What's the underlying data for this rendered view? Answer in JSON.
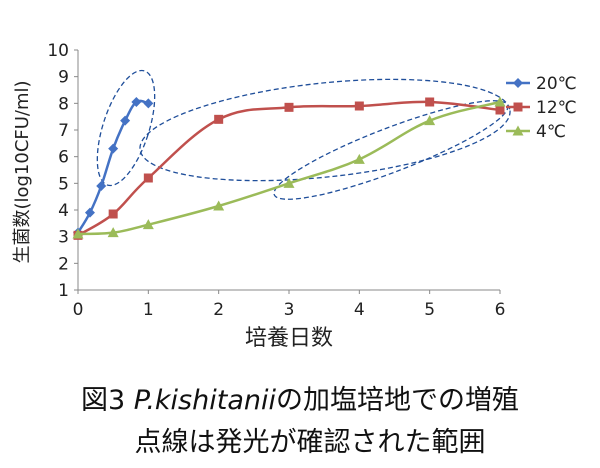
{
  "chart_data": {
    "type": "line",
    "ylabel": "生菌数(log10CFU/ml)",
    "xlabel": "培養日数",
    "xlim": [
      0,
      6
    ],
    "ylim": [
      1,
      10
    ],
    "x_ticks": [
      "0",
      "1",
      "2",
      "3",
      "4",
      "5",
      "6"
    ],
    "y_ticks": [
      "1",
      "2",
      "3",
      "4",
      "5",
      "6",
      "7",
      "8",
      "9",
      "10"
    ],
    "grid": false,
    "legend_position": "right",
    "series": [
      {
        "name": "20℃",
        "color": "#4472C4",
        "marker": "diamond",
        "x": [
          0,
          0.17,
          0.33,
          0.5,
          0.67,
          0.83,
          1.0
        ],
        "y": [
          3.15,
          3.9,
          4.9,
          6.3,
          7.35,
          8.05,
          8.0
        ]
      },
      {
        "name": "12℃",
        "color": "#C0504D",
        "marker": "square",
        "x": [
          0,
          0.5,
          1,
          2,
          3,
          4,
          5,
          6
        ],
        "y": [
          3.05,
          3.85,
          5.2,
          7.4,
          7.85,
          7.9,
          8.05,
          7.75
        ]
      },
      {
        "name": "4℃",
        "color": "#9BBB59",
        "marker": "triangle",
        "x": [
          0,
          0.5,
          1,
          2,
          3,
          4,
          5,
          6
        ],
        "y": [
          3.1,
          3.15,
          3.45,
          4.15,
          5.0,
          5.9,
          7.35,
          8.05
        ]
      }
    ],
    "highlight_regions_color": "#1F4E9A"
  },
  "caption": {
    "prefix": "図3 ",
    "species": "P.kishitanii",
    "line1_rest": "の加塩培地での増殖",
    "line2": "点線は発光が確認された範囲"
  }
}
